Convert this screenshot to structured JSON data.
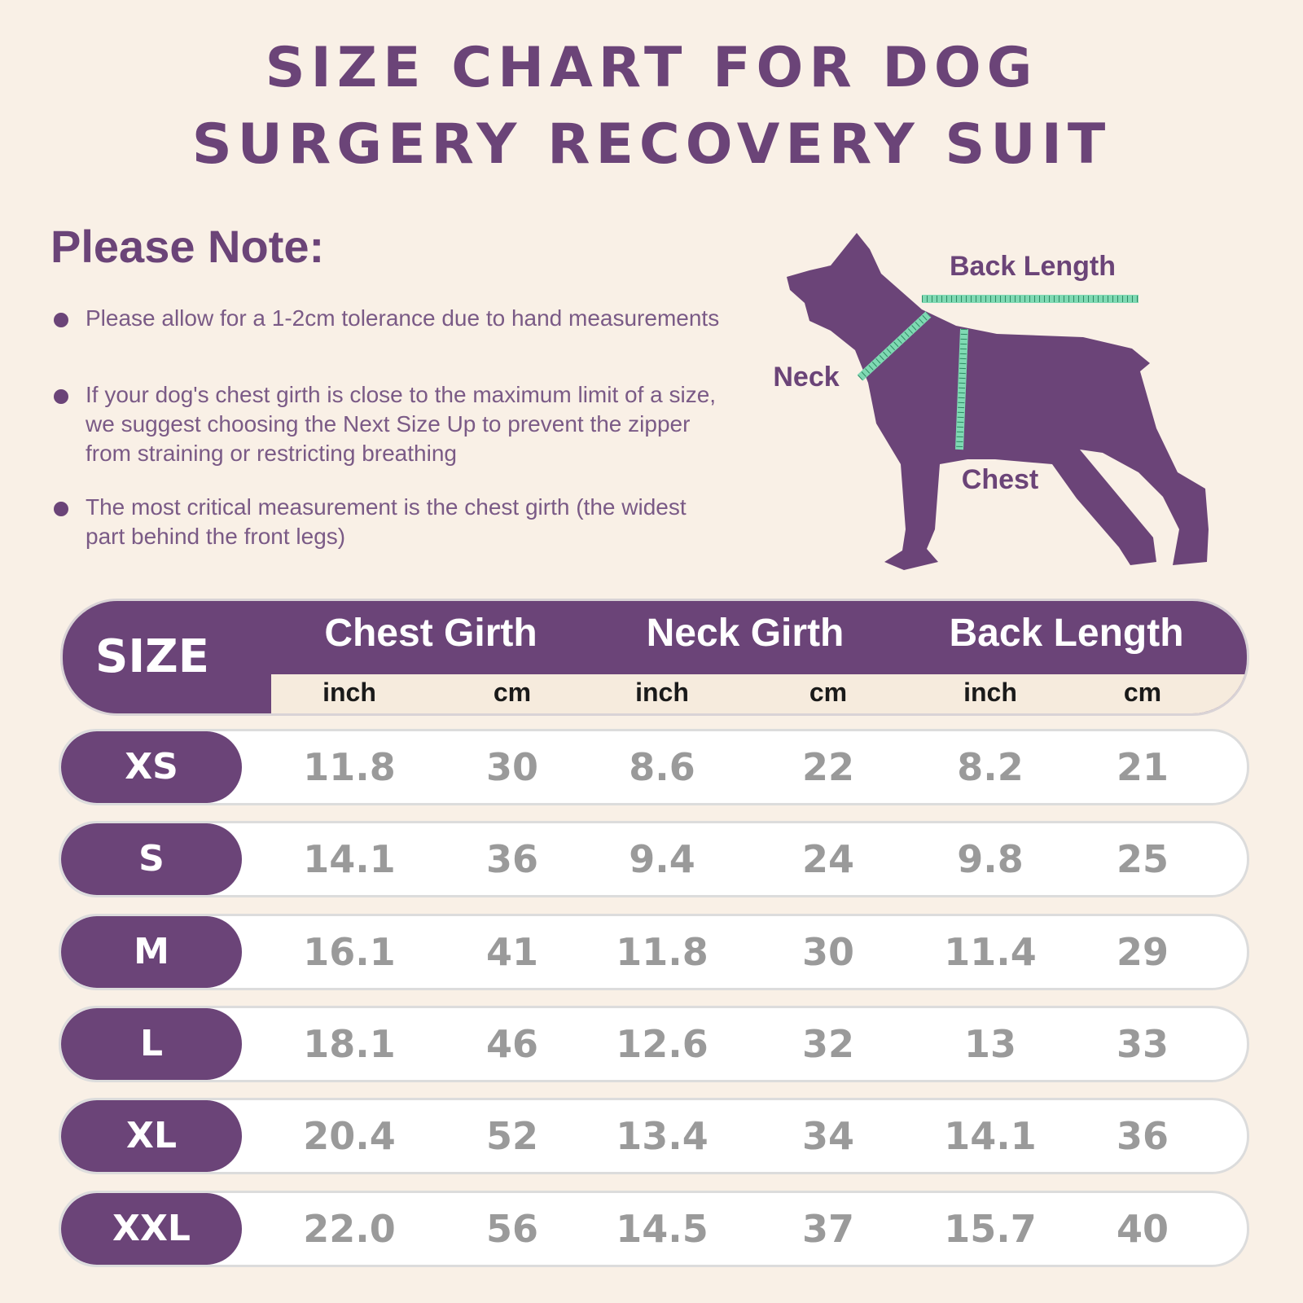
{
  "header": {
    "title_lines": [
      "SIZE CHART FOR DOG",
      "SURGERY RECOVERY SUIT"
    ]
  },
  "note": {
    "title": "Please Note:",
    "items": [
      "Please allow for a 1-2cm tolerance due to hand measurements",
      "If your dog's chest girth is close to the maximum limit of a size, we suggest choosing the Next Size Up to prevent the zipper from straining or restricting breathing",
      "The most critical measurement is the chest girth (the widest part behind the front legs)"
    ]
  },
  "diagram": {
    "back_label": "Back Length",
    "neck_label": "Neck",
    "chest_label": "Chest"
  },
  "table": {
    "size_header": "SIZE",
    "groups": [
      "Chest Girth",
      "Neck Girth",
      "Back Length"
    ],
    "units": [
      "inch",
      "cm",
      "inch",
      "cm",
      "inch",
      "cm"
    ],
    "rows": [
      {
        "size": "XS",
        "cells": [
          "11.8",
          "30",
          "8.6",
          "22",
          "8.2",
          "21"
        ]
      },
      {
        "size": "S",
        "cells": [
          "14.1",
          "36",
          "9.4",
          "24",
          "9.8",
          "25"
        ]
      },
      {
        "size": "M",
        "cells": [
          "16.1",
          "41",
          "11.8",
          "30",
          "11.4",
          "29"
        ]
      },
      {
        "size": "L",
        "cells": [
          "18.1",
          "46",
          "12.6",
          "32",
          "13",
          "33"
        ]
      },
      {
        "size": "XL",
        "cells": [
          "20.4",
          "52",
          "13.4",
          "34",
          "14.1",
          "36"
        ]
      },
      {
        "size": "XXL",
        "cells": [
          "22.0",
          "56",
          "14.5",
          "37",
          "15.7",
          "40"
        ]
      }
    ]
  }
}
